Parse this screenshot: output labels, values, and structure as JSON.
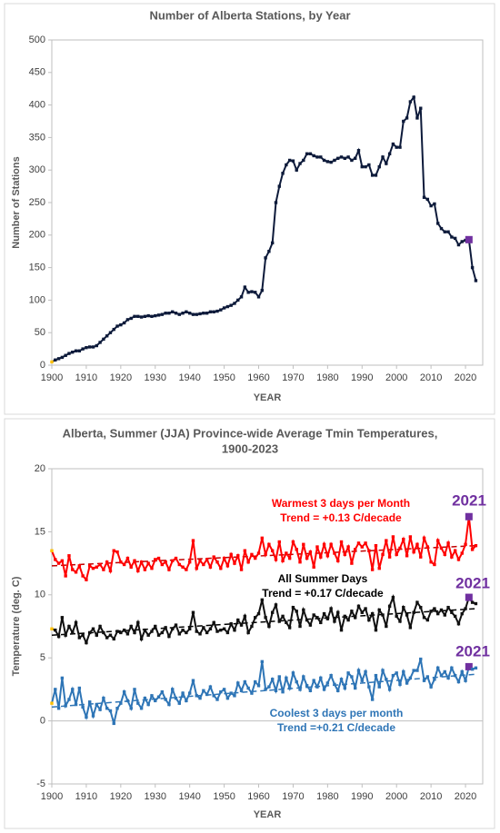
{
  "chart_data": [
    {
      "type": "line",
      "title": [
        "Number of Alberta Stations, by Year"
      ],
      "xlabel": "YEAR",
      "ylabel": "Number of Stations",
      "xlim": [
        1900,
        2025
      ],
      "xticks": [
        1900,
        1910,
        1920,
        1930,
        1940,
        1950,
        1960,
        1970,
        1980,
        1990,
        2000,
        2010,
        2020
      ],
      "ylim": [
        0,
        500
      ],
      "yticks": [
        0,
        50,
        100,
        150,
        200,
        250,
        300,
        350,
        400,
        450,
        500
      ],
      "start_color": "#ffc000",
      "highlight_x": 2021,
      "highlight_color": "#7030a0",
      "x": [
        1900,
        1901,
        1902,
        1903,
        1904,
        1905,
        1906,
        1907,
        1908,
        1909,
        1910,
        1911,
        1912,
        1913,
        1914,
        1915,
        1916,
        1917,
        1918,
        1919,
        1920,
        1921,
        1922,
        1923,
        1924,
        1925,
        1926,
        1927,
        1928,
        1929,
        1930,
        1931,
        1932,
        1933,
        1934,
        1935,
        1936,
        1937,
        1938,
        1939,
        1940,
        1941,
        1942,
        1943,
        1944,
        1945,
        1946,
        1947,
        1948,
        1949,
        1950,
        1951,
        1952,
        1953,
        1954,
        1955,
        1956,
        1957,
        1958,
        1959,
        1960,
        1961,
        1962,
        1963,
        1964,
        1965,
        1966,
        1967,
        1968,
        1969,
        1970,
        1971,
        1972,
        1973,
        1974,
        1975,
        1976,
        1977,
        1978,
        1979,
        1980,
        1981,
        1982,
        1983,
        1984,
        1985,
        1986,
        1987,
        1988,
        1989,
        1990,
        1991,
        1992,
        1993,
        1994,
        1995,
        1996,
        1997,
        1998,
        1999,
        2000,
        2001,
        2002,
        2003,
        2004,
        2005,
        2006,
        2007,
        2008,
        2009,
        2010,
        2011,
        2012,
        2013,
        2014,
        2015,
        2016,
        2017,
        2018,
        2019,
        2020,
        2021,
        2022,
        2023
      ],
      "series": [
        {
          "color": "#0d1a3a",
          "values": [
            5,
            8,
            10,
            12,
            15,
            18,
            20,
            22,
            22,
            25,
            27,
            28,
            28,
            30,
            35,
            40,
            45,
            50,
            55,
            60,
            62,
            65,
            70,
            72,
            75,
            75,
            74,
            75,
            76,
            75,
            76,
            77,
            78,
            80,
            80,
            82,
            80,
            78,
            80,
            82,
            80,
            78,
            78,
            79,
            80,
            80,
            82,
            82,
            83,
            85,
            88,
            90,
            92,
            95,
            100,
            105,
            120,
            112,
            113,
            112,
            105,
            115,
            165,
            175,
            188,
            250,
            275,
            295,
            308,
            315,
            314,
            300,
            310,
            315,
            325,
            325,
            322,
            320,
            320,
            315,
            313,
            312,
            315,
            318,
            320,
            318,
            320,
            315,
            318,
            330,
            305,
            305,
            308,
            292,
            292,
            305,
            320,
            310,
            325,
            340,
            335,
            335,
            375,
            380,
            405,
            412,
            380,
            395,
            258,
            255,
            245,
            248,
            218,
            210,
            205,
            205,
            197,
            195,
            185,
            190,
            192,
            193,
            150,
            130
          ]
        }
      ]
    },
    {
      "type": "line",
      "title": [
        "Alberta, Summer (JJA) Province-wide Average Tmin Temperatures,",
        "1900-2023"
      ],
      "xlabel": "YEAR",
      "ylabel": "Temperature (deg. C)",
      "xlim": [
        1900,
        2025
      ],
      "xticks": [
        1900,
        1910,
        1920,
        1930,
        1940,
        1950,
        1960,
        1970,
        1980,
        1990,
        2000,
        2010,
        2020
      ],
      "ylim": [
        -5,
        20
      ],
      "yticks": [
        -5,
        0,
        5,
        10,
        15,
        20
      ],
      "start_color": "#ffc000",
      "highlight_x": 2021,
      "highlight_color": "#7030a0",
      "x": [
        1900,
        1901,
        1902,
        1903,
        1904,
        1905,
        1906,
        1907,
        1908,
        1909,
        1910,
        1911,
        1912,
        1913,
        1914,
        1915,
        1916,
        1917,
        1918,
        1919,
        1920,
        1921,
        1922,
        1923,
        1924,
        1925,
        1926,
        1927,
        1928,
        1929,
        1930,
        1931,
        1932,
        1933,
        1934,
        1935,
        1936,
        1937,
        1938,
        1939,
        1940,
        1941,
        1942,
        1943,
        1944,
        1945,
        1946,
        1947,
        1948,
        1949,
        1950,
        1951,
        1952,
        1953,
        1954,
        1955,
        1956,
        1957,
        1958,
        1959,
        1960,
        1961,
        1962,
        1963,
        1964,
        1965,
        1966,
        1967,
        1968,
        1969,
        1970,
        1971,
        1972,
        1973,
        1974,
        1975,
        1976,
        1977,
        1978,
        1979,
        1980,
        1981,
        1982,
        1983,
        1984,
        1985,
        1986,
        1987,
        1988,
        1989,
        1990,
        1991,
        1992,
        1993,
        1994,
        1995,
        1996,
        1997,
        1998,
        1999,
        2000,
        2001,
        2002,
        2003,
        2004,
        2005,
        2006,
        2007,
        2008,
        2009,
        2010,
        2011,
        2012,
        2013,
        2014,
        2015,
        2016,
        2017,
        2018,
        2019,
        2020,
        2021,
        2022,
        2023
      ],
      "series": [
        {
          "color": "#ff0000",
          "values": [
            13.5,
            12.8,
            12.5,
            12.7,
            11.5,
            13.1,
            12.0,
            11.8,
            12.3,
            11.5,
            11.2,
            12.3,
            12.1,
            12.2,
            12.4,
            12.0,
            12.6,
            11.9,
            13.5,
            13.4,
            12.6,
            12.4,
            12.9,
            12.2,
            12.7,
            11.9,
            12.6,
            12.0,
            12.5,
            12.1,
            12.8,
            12.9,
            12.4,
            12.6,
            12.0,
            12.7,
            12.9,
            12.4,
            12.2,
            12.0,
            12.6,
            14.3,
            12.1,
            12.7,
            12.4,
            12.8,
            12.2,
            13.0,
            12.6,
            12.1,
            12.9,
            12.3,
            13.2,
            12.5,
            13.1,
            12.0,
            13.5,
            12.6,
            13.2,
            12.9,
            13.3,
            14.5,
            13.2,
            14.0,
            13.5,
            12.8,
            14.2,
            12.7,
            13.3,
            12.9,
            14.2,
            13.6,
            12.6,
            14.0,
            12.9,
            13.4,
            12.2,
            13.8,
            13.0,
            14.0,
            13.1,
            14.0,
            13.3,
            12.7,
            14.2,
            13.2,
            13.8,
            12.5,
            13.6,
            14.1,
            13.8,
            14.1,
            13.5,
            12.0,
            13.9,
            12.1,
            13.2,
            14.3,
            13.0,
            14.6,
            13.2,
            13.7,
            14.4,
            13.1,
            14.6,
            13.4,
            14.0,
            13.0,
            14.5,
            13.8,
            12.6,
            12.4,
            14.3,
            13.7,
            13.2,
            14.1,
            13.0,
            13.5,
            12.8,
            13.3,
            14.0,
            16.2,
            13.6,
            13.9
          ]
        },
        {
          "color": "#111111",
          "values": [
            7.3,
            7.2,
            6.7,
            8.2,
            6.8,
            7.5,
            7.0,
            7.8,
            6.6,
            6.8,
            6.2,
            7.0,
            7.3,
            6.8,
            7.5,
            7.0,
            6.6,
            6.8,
            6.5,
            7.1,
            7.0,
            7.2,
            6.9,
            7.5,
            7.0,
            7.8,
            6.5,
            7.2,
            6.8,
            7.1,
            7.5,
            6.8,
            7.0,
            7.4,
            6.7,
            7.3,
            7.6,
            6.9,
            7.2,
            7.0,
            7.3,
            8.6,
            7.1,
            6.9,
            7.4,
            7.0,
            7.3,
            7.8,
            7.1,
            7.2,
            7.3,
            7.0,
            7.7,
            7.2,
            8.0,
            7.6,
            8.3,
            7.0,
            7.5,
            8.2,
            8.5,
            9.6,
            8.2,
            7.5,
            8.6,
            9.2,
            7.9,
            8.3,
            7.8,
            7.4,
            9.0,
            8.7,
            7.5,
            8.8,
            8.0,
            7.6,
            8.4,
            8.2,
            7.8,
            8.5,
            8.1,
            8.9,
            7.9,
            8.6,
            7.2,
            8.3,
            8.0,
            8.7,
            8.2,
            9.1,
            8.6,
            8.9,
            8.0,
            8.5,
            7.2,
            8.8,
            8.4,
            7.5,
            9.1,
            9.8,
            8.3,
            7.9,
            9.0,
            8.4,
            7.4,
            8.6,
            9.4,
            9.0,
            8.2,
            8.0,
            8.7,
            8.9,
            8.5,
            8.8,
            8.4,
            9.0,
            8.6,
            8.3,
            7.7,
            8.5,
            8.9,
            9.8,
            9.4,
            9.3
          ]
        },
        {
          "color": "#2e75b6",
          "values": [
            1.4,
            2.5,
            1.0,
            3.4,
            1.2,
            1.7,
            2.5,
            1.3,
            2.6,
            1.1,
            0.3,
            1.5,
            0.4,
            1.3,
            0.9,
            1.8,
            1.0,
            0.8,
            -0.2,
            1.0,
            1.4,
            2.3,
            1.6,
            1.0,
            2.5,
            1.4,
            1.0,
            1.8,
            1.3,
            2.0,
            1.6,
            1.9,
            2.3,
            1.7,
            1.3,
            2.5,
            1.8,
            1.4,
            2.2,
            1.6,
            2.2,
            3.2,
            2.0,
            1.8,
            2.4,
            2.1,
            2.7,
            2.0,
            1.7,
            2.3,
            2.5,
            1.8,
            2.2,
            2.0,
            3.0,
            2.4,
            3.1,
            2.6,
            2.2,
            3.1,
            2.8,
            4.7,
            2.5,
            2.7,
            3.3,
            2.4,
            3.5,
            2.3,
            3.4,
            2.6,
            3.8,
            3.1,
            2.5,
            3.5,
            2.8,
            2.4,
            3.2,
            2.7,
            3.4,
            2.5,
            3.0,
            3.6,
            2.9,
            2.4,
            3.3,
            2.6,
            3.8,
            3.5,
            2.6,
            4.0,
            3.2,
            3.9,
            2.7,
            1.7,
            3.6,
            2.7,
            4.0,
            3.3,
            2.5,
            3.6,
            3.8,
            2.9,
            3.9,
            3.0,
            3.4,
            4.0,
            4.0,
            4.9,
            3.2,
            3.5,
            2.7,
            3.3,
            4.2,
            3.6,
            3.9,
            3.4,
            4.2,
            3.6,
            3.1,
            3.9,
            3.2,
            4.3,
            4.1,
            4.2
          ]
        }
      ],
      "trend_lines": [
        {
          "color": "#c00000",
          "x": [
            1900,
            2023
          ],
          "values": [
            12.3,
            13.9
          ]
        },
        {
          "color": "#000000",
          "x": [
            1900,
            2023
          ],
          "values": [
            6.8,
            8.9
          ]
        },
        {
          "color": "#2e75b6",
          "x": [
            1900,
            2023
          ],
          "values": [
            1.1,
            3.7
          ]
        }
      ],
      "annotations": [
        {
          "text": "Warmest 3 days per Month",
          "color": "#ff0000"
        },
        {
          "text": "Trend = +0.13 C/decade",
          "color": "#ff0000"
        },
        {
          "text": "2021",
          "color": "#7030a0"
        },
        {
          "text": "All Summer Days",
          "color": "#000000"
        },
        {
          "text": "Trend = +0.17 C/decade",
          "color": "#000000"
        },
        {
          "text": "2021",
          "color": "#7030a0"
        },
        {
          "text": "Coolest 3 days per month",
          "color": "#2e75b6"
        },
        {
          "text": "Trend =+0.21 C/decade",
          "color": "#2e75b6"
        },
        {
          "text": "2021",
          "color": "#7030a0"
        }
      ]
    }
  ]
}
